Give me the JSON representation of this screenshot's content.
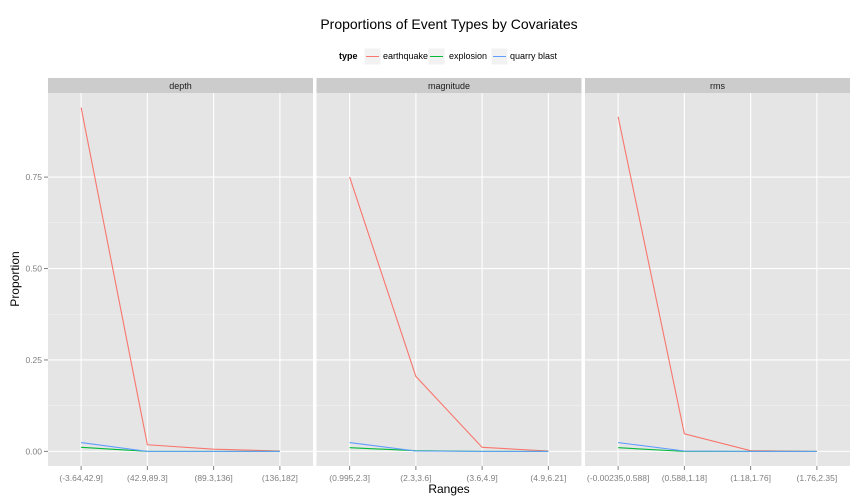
{
  "chart_data": {
    "type": "line",
    "title": "Proportions of Event Types by Covariates",
    "xlabel": "Ranges",
    "ylabel": "Proportion",
    "ylim": [
      -0.04,
      0.98
    ],
    "yticks": [
      {
        "value": 0.0,
        "label": "0.00"
      },
      {
        "value": 0.25,
        "label": "0.25"
      },
      {
        "value": 0.5,
        "label": "0.50"
      },
      {
        "value": 0.75,
        "label": "0.75"
      }
    ],
    "grid": true,
    "legend": {
      "title": "type",
      "position": "top",
      "entries": [
        {
          "name": "earthquake",
          "color": "#F8766D"
        },
        {
          "name": "explosion",
          "color": "#00BA38"
        },
        {
          "name": "quarry blast",
          "color": "#619CFF"
        }
      ]
    },
    "facets": [
      {
        "name": "depth",
        "categories": [
          "(-3.64,42.9]",
          "(42.9,89.3]",
          "(89.3,136]",
          "(136,182]"
        ],
        "series": [
          {
            "name": "earthquake",
            "values": [
              0.94,
              0.018,
              0.006,
              0.001
            ]
          },
          {
            "name": "explosion",
            "values": [
              0.011,
              0.0,
              0.0,
              0.0
            ]
          },
          {
            "name": "quarry blast",
            "values": [
              0.024,
              0.0,
              0.0,
              0.0
            ]
          }
        ]
      },
      {
        "name": "magnitude",
        "categories": [
          "(0.995,2.3]",
          "(2.3,3.6]",
          "(3.6,4.9]",
          "(4.9,6.21]"
        ],
        "series": [
          {
            "name": "earthquake",
            "values": [
              0.75,
              0.205,
              0.011,
              0.001
            ]
          },
          {
            "name": "explosion",
            "values": [
              0.01,
              0.002,
              0.0,
              0.0
            ]
          },
          {
            "name": "quarry blast",
            "values": [
              0.024,
              0.001,
              0.0,
              0.0
            ]
          }
        ]
      },
      {
        "name": "rms",
        "categories": [
          "(-0.00235,0.588]",
          "(0.588,1.18]",
          "(1.18,1.76]",
          "(1.76,2.35]"
        ],
        "series": [
          {
            "name": "earthquake",
            "values": [
              0.915,
              0.048,
              0.002,
              0.0
            ]
          },
          {
            "name": "explosion",
            "values": [
              0.01,
              0.0,
              0.0,
              0.0
            ]
          },
          {
            "name": "quarry blast",
            "values": [
              0.024,
              0.001,
              0.0,
              0.0
            ]
          }
        ]
      }
    ]
  }
}
